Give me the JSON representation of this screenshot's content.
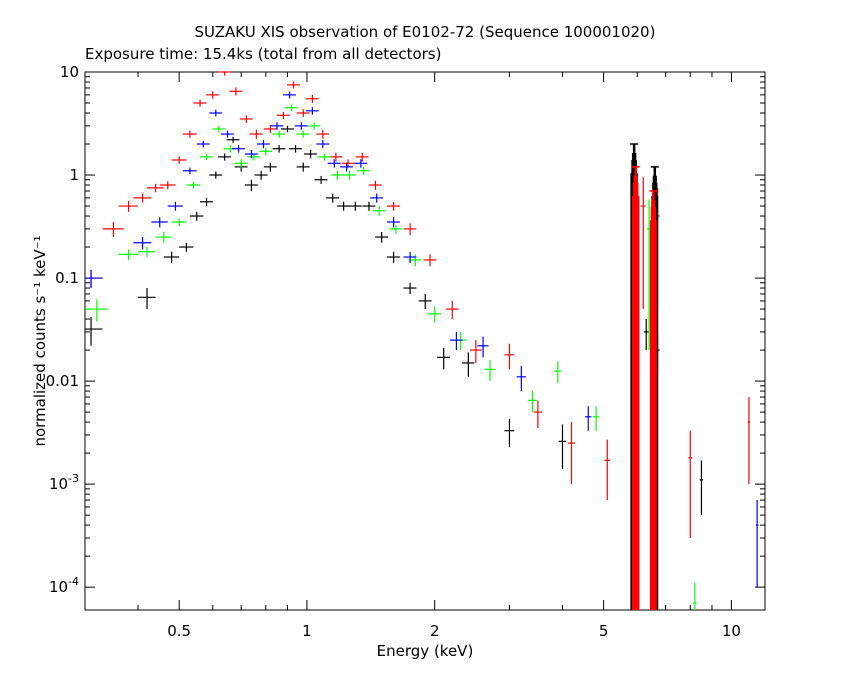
{
  "chart_data": {
    "type": "scatter",
    "title": "SUZAKU XIS observation of E0102-72 (Sequence 100001020)",
    "subtitle": "Exposure time: 15.4ks (total from all detectors)",
    "xlabel": "Energy (keV)",
    "ylabel": "normalized counts s⁻¹ keV⁻¹",
    "xlim": [
      0.3,
      12.0
    ],
    "ylim": [
      6e-05,
      10.0
    ],
    "x_scale": "log",
    "y_scale": "log",
    "grid": false,
    "colors": {
      "black": "#000000",
      "red": "#ff0000",
      "green": "#00ff00",
      "blue": "#0000ff"
    },
    "x_ticks": [
      {
        "value": 0.5,
        "label": "0.5"
      },
      {
        "value": 1,
        "label": "1"
      },
      {
        "value": 2,
        "label": "2"
      },
      {
        "value": 5,
        "label": "5"
      },
      {
        "value": 10,
        "label": "10"
      }
    ],
    "y_ticks": [
      {
        "value": 10,
        "label": "10"
      },
      {
        "value": 1,
        "label": "1"
      },
      {
        "value": 0.1,
        "label": "0.1"
      },
      {
        "value": 0.01,
        "label": "0.01"
      },
      {
        "value": 0.001,
        "base": "10",
        "exp": "-3"
      },
      {
        "value": 0.0001,
        "base": "10",
        "exp": "-4"
      }
    ],
    "series": [
      {
        "color": "black",
        "points": [
          [
            0.31,
            0.032,
            0.01
          ],
          [
            0.42,
            0.065,
            0.015
          ],
          [
            0.48,
            0.16,
            0.02
          ],
          [
            0.52,
            0.2,
            0.02
          ],
          [
            0.55,
            0.4,
            0.04
          ],
          [
            0.58,
            0.55,
            0.05
          ],
          [
            0.61,
            1.0,
            0.08
          ],
          [
            0.64,
            1.5,
            0.12
          ],
          [
            0.67,
            2.2,
            0.15
          ],
          [
            0.7,
            1.2,
            0.12
          ],
          [
            0.74,
            0.8,
            0.1
          ],
          [
            0.78,
            1.0,
            0.1
          ],
          [
            0.82,
            1.2,
            0.12
          ],
          [
            0.86,
            1.8,
            0.15
          ],
          [
            0.9,
            2.8,
            0.2
          ],
          [
            0.94,
            1.8,
            0.15
          ],
          [
            0.98,
            1.2,
            0.12
          ],
          [
            1.02,
            1.6,
            0.15
          ],
          [
            1.08,
            0.9,
            0.08
          ],
          [
            1.15,
            0.6,
            0.06
          ],
          [
            1.22,
            0.5,
            0.05
          ],
          [
            1.3,
            0.5,
            0.05
          ],
          [
            1.4,
            0.5,
            0.05
          ],
          [
            1.5,
            0.25,
            0.03
          ],
          [
            1.6,
            0.16,
            0.02
          ],
          [
            1.75,
            0.08,
            0.01
          ],
          [
            1.9,
            0.06,
            0.01
          ],
          [
            2.1,
            0.017,
            0.004
          ],
          [
            2.4,
            0.015,
            0.004
          ],
          [
            3.0,
            0.0033,
            0.001
          ],
          [
            4.0,
            0.0026,
            0.0012
          ],
          [
            6.3,
            0.03,
            0.01
          ],
          [
            6.7,
            0.02,
            0.008
          ],
          [
            8.5,
            0.0011,
            0.0006
          ]
        ]
      },
      {
        "color": "red",
        "points": [
          [
            0.31,
            0.1,
            0.02
          ],
          [
            0.35,
            0.3,
            0.05
          ],
          [
            0.38,
            0.5,
            0.06
          ],
          [
            0.41,
            0.6,
            0.06
          ],
          [
            0.44,
            0.75,
            0.07
          ],
          [
            0.47,
            0.8,
            0.07
          ],
          [
            0.5,
            1.4,
            0.12
          ],
          [
            0.53,
            2.5,
            0.2
          ],
          [
            0.56,
            5.0,
            0.4
          ],
          [
            0.6,
            6.0,
            0.5
          ],
          [
            0.64,
            10.0,
            0.8
          ],
          [
            0.68,
            6.5,
            0.6
          ],
          [
            0.72,
            3.5,
            0.3
          ],
          [
            0.76,
            2.5,
            0.25
          ],
          [
            0.82,
            2.8,
            0.25
          ],
          [
            0.88,
            3.8,
            0.3
          ],
          [
            0.93,
            7.5,
            0.6
          ],
          [
            0.98,
            4.0,
            0.35
          ],
          [
            1.03,
            5.5,
            0.5
          ],
          [
            1.09,
            2.5,
            0.25
          ],
          [
            1.17,
            1.5,
            0.15
          ],
          [
            1.25,
            1.3,
            0.12
          ],
          [
            1.35,
            1.5,
            0.15
          ],
          [
            1.45,
            0.8,
            0.08
          ],
          [
            1.6,
            0.5,
            0.05
          ],
          [
            1.75,
            0.3,
            0.04
          ],
          [
            1.95,
            0.15,
            0.02
          ],
          [
            2.2,
            0.05,
            0.01
          ],
          [
            2.5,
            0.02,
            0.005
          ],
          [
            3.0,
            0.018,
            0.005
          ],
          [
            3.5,
            0.005,
            0.0015
          ],
          [
            4.2,
            0.0025,
            0.0015
          ],
          [
            5.1,
            0.0017,
            0.001
          ],
          [
            6.2,
            0.5,
            0.45
          ],
          [
            6.7,
            0.4,
            0.35
          ],
          [
            8.0,
            0.0018,
            0.0015
          ],
          [
            11.0,
            0.004,
            0.003
          ]
        ]
      },
      {
        "color": "green",
        "points": [
          [
            0.32,
            0.05,
            0.012
          ],
          [
            0.38,
            0.17,
            0.02
          ],
          [
            0.42,
            0.18,
            0.02
          ],
          [
            0.46,
            0.25,
            0.03
          ],
          [
            0.5,
            0.35,
            0.03
          ],
          [
            0.54,
            0.8,
            0.06
          ],
          [
            0.58,
            1.5,
            0.1
          ],
          [
            0.62,
            2.8,
            0.2
          ],
          [
            0.66,
            1.8,
            0.15
          ],
          [
            0.7,
            1.3,
            0.12
          ],
          [
            0.75,
            1.5,
            0.12
          ],
          [
            0.8,
            1.7,
            0.15
          ],
          [
            0.86,
            2.5,
            0.2
          ],
          [
            0.92,
            4.5,
            0.35
          ],
          [
            0.98,
            2.5,
            0.2
          ],
          [
            1.04,
            3.0,
            0.25
          ],
          [
            1.1,
            1.5,
            0.12
          ],
          [
            1.18,
            1.0,
            0.1
          ],
          [
            1.26,
            1.0,
            0.1
          ],
          [
            1.36,
            1.1,
            0.1
          ],
          [
            1.48,
            0.45,
            0.05
          ],
          [
            1.62,
            0.3,
            0.03
          ],
          [
            1.8,
            0.15,
            0.02
          ],
          [
            2.0,
            0.045,
            0.008
          ],
          [
            2.3,
            0.025,
            0.005
          ],
          [
            2.7,
            0.013,
            0.003
          ],
          [
            3.4,
            0.0065,
            0.0015
          ],
          [
            3.9,
            0.0125,
            0.003
          ],
          [
            4.8,
            0.0045,
            0.0012
          ],
          [
            6.4,
            0.3,
            0.28
          ],
          [
            8.2,
            7e-05,
            4e-05
          ]
        ]
      },
      {
        "color": "blue",
        "points": [
          [
            0.31,
            0.1,
            0.02
          ],
          [
            0.41,
            0.22,
            0.03
          ],
          [
            0.45,
            0.35,
            0.04
          ],
          [
            0.49,
            0.5,
            0.05
          ],
          [
            0.53,
            1.1,
            0.08
          ],
          [
            0.57,
            2.0,
            0.15
          ],
          [
            0.61,
            4.0,
            0.3
          ],
          [
            0.65,
            2.5,
            0.2
          ],
          [
            0.69,
            1.8,
            0.15
          ],
          [
            0.74,
            1.6,
            0.15
          ],
          [
            0.79,
            2.0,
            0.18
          ],
          [
            0.85,
            3.0,
            0.25
          ],
          [
            0.91,
            6.0,
            0.45
          ],
          [
            0.97,
            3.0,
            0.25
          ],
          [
            1.03,
            4.2,
            0.35
          ],
          [
            1.09,
            2.0,
            0.18
          ],
          [
            1.16,
            1.3,
            0.12
          ],
          [
            1.24,
            1.2,
            0.12
          ],
          [
            1.34,
            1.3,
            0.12
          ],
          [
            1.46,
            0.6,
            0.06
          ],
          [
            1.6,
            0.35,
            0.04
          ],
          [
            1.75,
            0.16,
            0.02
          ],
          [
            2.25,
            0.025,
            0.005
          ],
          [
            2.6,
            0.022,
            0.005
          ],
          [
            3.2,
            0.011,
            0.003
          ],
          [
            4.6,
            0.0045,
            0.0012
          ],
          [
            5.9,
            0.0009,
            0.0005
          ],
          [
            6.6,
            0.35,
            0.32
          ],
          [
            11.5,
            0.0004,
            0.0003
          ]
        ]
      }
    ],
    "lines": [
      {
        "color": "black",
        "energy": 5.9,
        "peak": 2.0
      },
      {
        "color": "black",
        "energy": 6.6,
        "peak": 1.2
      },
      {
        "color": "red",
        "energy": 5.95,
        "peak": 1.2
      },
      {
        "color": "red",
        "energy": 6.55,
        "peak": 0.7
      }
    ]
  }
}
